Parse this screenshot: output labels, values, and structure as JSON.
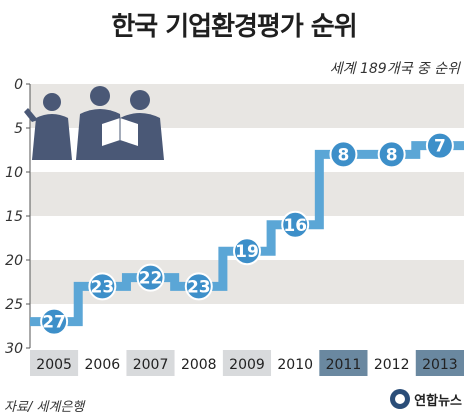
{
  "title": "한국 기업환경평가 순위",
  "subtitle": "세계 189개국 중 순위",
  "source": "자료/ 세계은행",
  "logo_text": "연합뉴스",
  "colors": {
    "line": "#5ba6d6",
    "marker": "#3d8fc9",
    "band": "#e8e6e3",
    "highlight_year": "#6a88a0",
    "year_light": "#d8dadc",
    "silhouette": "#4a5876"
  },
  "chart_data": {
    "type": "line",
    "title": "한국 기업환경평가 순위",
    "subtitle": "세계 189개국 중 순위",
    "x": [
      "2005",
      "2006",
      "2007",
      "2008",
      "2009",
      "2010",
      "2011",
      "2012",
      "2013"
    ],
    "series": [
      {
        "values": [
          27,
          23,
          22,
          23,
          19,
          16,
          8,
          8,
          7
        ]
      }
    ],
    "y_ticks": [
      0,
      5,
      10,
      15,
      20,
      25,
      30
    ],
    "ylim": [
      0,
      30
    ],
    "y_inverted": true,
    "grid": "alternating bands",
    "legend": "none"
  }
}
